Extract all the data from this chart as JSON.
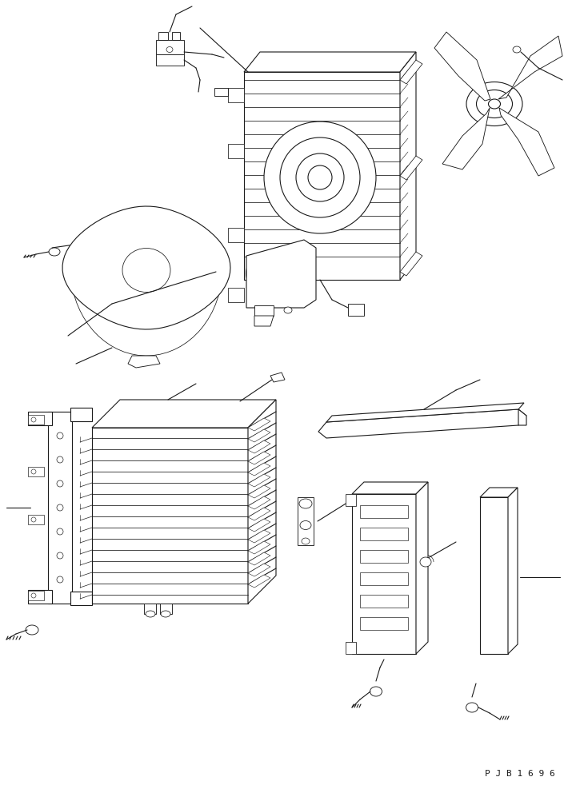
{
  "bg_color": "#ffffff",
  "line_color": "#1a1a1a",
  "line_width": 0.8,
  "part_id": "P J B 1 6 9 6",
  "fig_width": 7.1,
  "fig_height": 9.82,
  "dpi": 100
}
